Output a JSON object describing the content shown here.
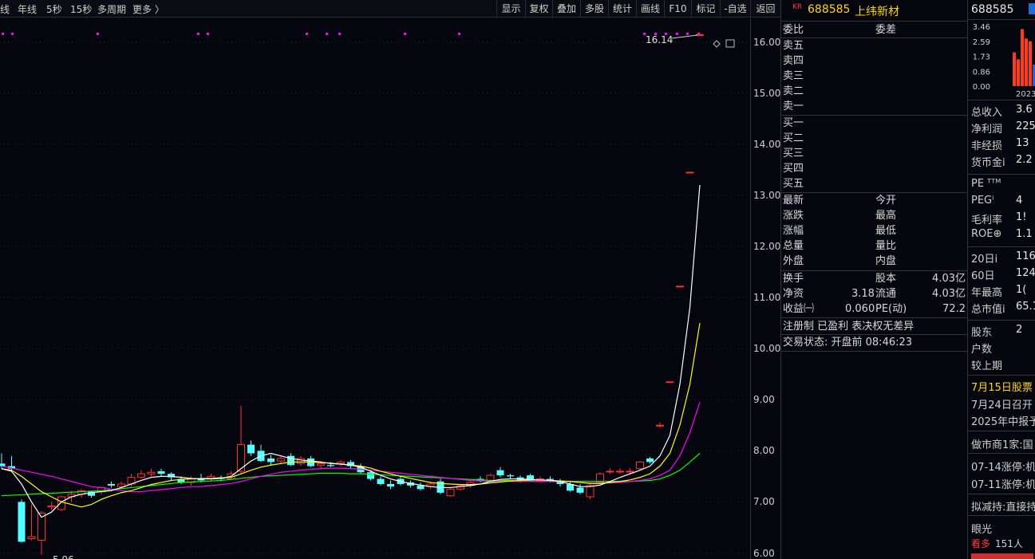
{
  "toolbar": {
    "periods": [
      "线",
      "年线",
      "5秒",
      "15秒",
      "多周期",
      "更多"
    ],
    "buttons": [
      "显示",
      "复权",
      "叠加",
      "多股",
      "统计",
      "画线",
      "F10",
      "标记",
      "-自选",
      "返回"
    ]
  },
  "chart": {
    "y_ticks": [
      "16.00",
      "15.00",
      "14.00",
      "13.00",
      "12.00",
      "11.00",
      "10.00",
      "9.00",
      "8.00",
      "7.00",
      "6.00"
    ],
    "high_label": "16.14",
    "low_label": "5.96",
    "colors": {
      "up": "#ff3030",
      "down": "#54ffff",
      "ma5": "#ffffff",
      "ma10": "#ffff00",
      "ma20": "#ff00ff",
      "ma60": "#00ff00",
      "marker": "#ff00ff"
    }
  },
  "chart_data": {
    "type": "candlestick",
    "ylim": [
      6.0,
      16.0
    ],
    "candles": [
      {
        "o": 7.75,
        "h": 7.95,
        "l": 7.65,
        "c": 7.7
      },
      {
        "o": 7.7,
        "h": 7.9,
        "l": 7.6,
        "c": 7.65
      },
      {
        "o": 7.0,
        "h": 7.05,
        "l": 6.2,
        "c": 6.22
      },
      {
        "o": 6.28,
        "h": 6.95,
        "l": 6.25,
        "c": 6.32
      },
      {
        "o": 6.25,
        "h": 6.82,
        "l": 5.96,
        "c": 6.78
      },
      {
        "o": 6.9,
        "h": 7.0,
        "l": 6.85,
        "c": 6.92
      },
      {
        "o": 6.85,
        "h": 7.12,
        "l": 6.82,
        "c": 7.1
      },
      {
        "o": 7.1,
        "h": 7.22,
        "l": 7.0,
        "c": 7.15
      },
      {
        "o": 7.15,
        "h": 7.25,
        "l": 7.08,
        "c": 7.22
      },
      {
        "o": 7.2,
        "h": 7.22,
        "l": 7.08,
        "c": 7.12
      },
      {
        "o": 7.2,
        "h": 7.3,
        "l": 7.15,
        "c": 7.28
      },
      {
        "o": 7.35,
        "h": 7.4,
        "l": 7.28,
        "c": 7.32
      },
      {
        "o": 7.3,
        "h": 7.4,
        "l": 7.25,
        "c": 7.35
      },
      {
        "o": 7.35,
        "h": 7.55,
        "l": 7.3,
        "c": 7.48
      },
      {
        "o": 7.48,
        "h": 7.62,
        "l": 7.45,
        "c": 7.55
      },
      {
        "o": 7.55,
        "h": 7.65,
        "l": 7.5,
        "c": 7.58
      },
      {
        "o": 7.6,
        "h": 7.65,
        "l": 7.5,
        "c": 7.55
      },
      {
        "o": 7.55,
        "h": 7.58,
        "l": 7.42,
        "c": 7.48
      },
      {
        "o": 7.45,
        "h": 7.5,
        "l": 7.35,
        "c": 7.38
      },
      {
        "o": 7.38,
        "h": 7.5,
        "l": 7.32,
        "c": 7.45
      },
      {
        "o": 7.45,
        "h": 7.55,
        "l": 7.38,
        "c": 7.42
      },
      {
        "o": 7.45,
        "h": 7.55,
        "l": 7.4,
        "c": 7.5
      },
      {
        "o": 7.48,
        "h": 7.52,
        "l": 7.4,
        "c": 7.45
      },
      {
        "o": 7.45,
        "h": 7.6,
        "l": 7.42,
        "c": 7.55
      },
      {
        "o": 7.6,
        "h": 8.88,
        "l": 7.55,
        "c": 8.12
      },
      {
        "o": 8.12,
        "h": 8.2,
        "l": 7.9,
        "c": 7.95
      },
      {
        "o": 8.0,
        "h": 8.12,
        "l": 7.78,
        "c": 7.8
      },
      {
        "o": 7.85,
        "h": 7.92,
        "l": 7.72,
        "c": 7.78
      },
      {
        "o": 7.8,
        "h": 7.9,
        "l": 7.75,
        "c": 7.85
      },
      {
        "o": 7.9,
        "h": 7.95,
        "l": 7.7,
        "c": 7.72
      },
      {
        "o": 7.75,
        "h": 7.9,
        "l": 7.7,
        "c": 7.85
      },
      {
        "o": 7.85,
        "h": 7.9,
        "l": 7.68,
        "c": 7.7
      },
      {
        "o": 7.72,
        "h": 7.8,
        "l": 7.65,
        "c": 7.75
      },
      {
        "o": 7.72,
        "h": 7.78,
        "l": 7.68,
        "c": 7.7
      },
      {
        "o": 7.75,
        "h": 7.82,
        "l": 7.7,
        "c": 7.78
      },
      {
        "o": 7.78,
        "h": 7.82,
        "l": 7.65,
        "c": 7.7
      },
      {
        "o": 7.7,
        "h": 7.75,
        "l": 7.55,
        "c": 7.58
      },
      {
        "o": 7.58,
        "h": 7.62,
        "l": 7.42,
        "c": 7.45
      },
      {
        "o": 7.45,
        "h": 7.5,
        "l": 7.32,
        "c": 7.35
      },
      {
        "o": 7.35,
        "h": 7.42,
        "l": 7.25,
        "c": 7.3
      },
      {
        "o": 7.45,
        "h": 7.5,
        "l": 7.32,
        "c": 7.35
      },
      {
        "o": 7.38,
        "h": 7.42,
        "l": 7.28,
        "c": 7.32
      },
      {
        "o": 7.32,
        "h": 7.38,
        "l": 7.22,
        "c": 7.25
      },
      {
        "o": 7.3,
        "h": 7.4,
        "l": 7.25,
        "c": 7.35
      },
      {
        "o": 7.4,
        "h": 7.45,
        "l": 7.15,
        "c": 7.18
      },
      {
        "o": 7.12,
        "h": 7.28,
        "l": 7.1,
        "c": 7.25
      },
      {
        "o": 7.25,
        "h": 7.35,
        "l": 7.22,
        "c": 7.32
      },
      {
        "o": 7.32,
        "h": 7.4,
        "l": 7.28,
        "c": 7.38
      },
      {
        "o": 7.45,
        "h": 7.5,
        "l": 7.38,
        "c": 7.42
      },
      {
        "o": 7.42,
        "h": 7.55,
        "l": 7.4,
        "c": 7.52
      },
      {
        "o": 7.62,
        "h": 7.68,
        "l": 7.48,
        "c": 7.52
      },
      {
        "o": 7.52,
        "h": 7.55,
        "l": 7.45,
        "c": 7.5
      },
      {
        "o": 7.48,
        "h": 7.52,
        "l": 7.38,
        "c": 7.42
      },
      {
        "o": 7.52,
        "h": 7.55,
        "l": 7.4,
        "c": 7.42
      },
      {
        "o": 7.42,
        "h": 7.5,
        "l": 7.38,
        "c": 7.45
      },
      {
        "o": 7.45,
        "h": 7.5,
        "l": 7.38,
        "c": 7.42
      },
      {
        "o": 7.4,
        "h": 7.45,
        "l": 7.3,
        "c": 7.35
      },
      {
        "o": 7.35,
        "h": 7.4,
        "l": 7.2,
        "c": 7.22
      },
      {
        "o": 7.28,
        "h": 7.35,
        "l": 7.15,
        "c": 7.18
      },
      {
        "o": 7.1,
        "h": 7.35,
        "l": 7.05,
        "c": 7.32
      },
      {
        "o": 7.38,
        "h": 7.58,
        "l": 7.35,
        "c": 7.55
      },
      {
        "o": 7.6,
        "h": 7.66,
        "l": 7.55,
        "c": 7.6
      },
      {
        "o": 7.6,
        "h": 7.66,
        "l": 7.55,
        "c": 7.6
      },
      {
        "o": 7.6,
        "h": 7.66,
        "l": 7.55,
        "c": 7.6
      },
      {
        "o": 7.65,
        "h": 7.8,
        "l": 7.62,
        "c": 7.78
      },
      {
        "o": 7.85,
        "h": 7.88,
        "l": 7.75,
        "c": 7.78
      },
      {
        "o": 8.5,
        "h": 8.55,
        "l": 8.45,
        "c": 8.5
      },
      {
        "o": 9.35,
        "h": 9.35,
        "l": 9.35,
        "c": 9.35
      },
      {
        "o": 11.22,
        "h": 11.22,
        "l": 11.22,
        "c": 11.22
      },
      {
        "o": 13.45,
        "h": 13.45,
        "l": 13.45,
        "c": 13.45
      },
      {
        "o": 16.14,
        "h": 16.14,
        "l": 16.14,
        "c": 16.14
      }
    ],
    "ma5": [
      7.65,
      7.6,
      7.35,
      7.0,
      6.7,
      6.8,
      7.0,
      7.1,
      7.15,
      7.18,
      7.2,
      7.22,
      7.28,
      7.35,
      7.42,
      7.48,
      7.5,
      7.5,
      7.48,
      7.46,
      7.45,
      7.45,
      7.46,
      7.5,
      7.65,
      7.8,
      7.9,
      7.95,
      7.9,
      7.85,
      7.82,
      7.8,
      7.78,
      7.75,
      7.74,
      7.72,
      7.68,
      7.6,
      7.52,
      7.45,
      7.4,
      7.36,
      7.33,
      7.3,
      7.28,
      7.28,
      7.3,
      7.32,
      7.35,
      7.4,
      7.44,
      7.45,
      7.45,
      7.44,
      7.43,
      7.42,
      7.4,
      7.35,
      7.3,
      7.3,
      7.33,
      7.4,
      7.48,
      7.55,
      7.62,
      7.7,
      7.9,
      8.3,
      9.3,
      10.8,
      13.2
    ],
    "ma10": [
      7.65,
      7.62,
      7.5,
      7.35,
      7.2,
      7.1,
      7.0,
      6.95,
      6.9,
      6.95,
      7.05,
      7.12,
      7.18,
      7.22,
      7.28,
      7.34,
      7.38,
      7.42,
      7.44,
      7.45,
      7.46,
      7.46,
      7.47,
      7.48,
      7.55,
      7.62,
      7.68,
      7.72,
      7.75,
      7.78,
      7.78,
      7.78,
      7.77,
      7.76,
      7.74,
      7.72,
      7.7,
      7.66,
      7.6,
      7.55,
      7.5,
      7.46,
      7.42,
      7.38,
      7.36,
      7.35,
      7.34,
      7.34,
      7.35,
      7.37,
      7.39,
      7.41,
      7.42,
      7.43,
      7.43,
      7.42,
      7.41,
      7.4,
      7.38,
      7.36,
      7.36,
      7.38,
      7.4,
      7.43,
      7.48,
      7.55,
      7.7,
      7.95,
      8.5,
      9.3,
      10.5
    ],
    "ma20": [
      7.7,
      7.66,
      7.62,
      7.58,
      7.54,
      7.5,
      7.45,
      7.4,
      7.35,
      7.3,
      7.28,
      7.25,
      7.22,
      7.2,
      7.2,
      7.22,
      7.24,
      7.26,
      7.28,
      7.3,
      7.3,
      7.32,
      7.34,
      7.36,
      7.4,
      7.45,
      7.5,
      7.54,
      7.58,
      7.6,
      7.62,
      7.64,
      7.65,
      7.66,
      7.66,
      7.65,
      7.64,
      7.62,
      7.6,
      7.58,
      7.56,
      7.54,
      7.52,
      7.5,
      7.48,
      7.46,
      7.44,
      7.42,
      7.41,
      7.4,
      7.4,
      7.4,
      7.4,
      7.4,
      7.4,
      7.4,
      7.4,
      7.4,
      7.38,
      7.37,
      7.37,
      7.37,
      7.38,
      7.4,
      7.42,
      7.45,
      7.52,
      7.62,
      7.9,
      8.35,
      8.95
    ],
    "ma60": [
      7.12,
      7.13,
      7.14,
      7.15,
      7.16,
      7.17,
      7.18,
      7.19,
      7.2,
      7.21,
      7.22,
      7.24,
      7.26,
      7.28,
      7.3,
      7.32,
      7.34,
      7.36,
      7.38,
      7.39,
      7.4,
      7.41,
      7.42,
      7.44,
      7.46,
      7.48,
      7.5,
      7.51,
      7.52,
      7.53,
      7.54,
      7.55,
      7.56,
      7.56,
      7.56,
      7.55,
      7.55,
      7.54,
      7.53,
      7.52,
      7.51,
      7.5,
      7.49,
      7.48,
      7.47,
      7.46,
      7.45,
      7.44,
      7.43,
      7.42,
      7.42,
      7.42,
      7.41,
      7.41,
      7.4,
      7.4,
      7.4,
      7.4,
      7.4,
      7.4,
      7.4,
      7.4,
      7.4,
      7.4,
      7.41,
      7.42,
      7.45,
      7.52,
      7.62,
      7.78,
      7.95
    ]
  },
  "order_panel": {
    "kr_tag": "KR",
    "code": "688585",
    "name": "上纬新材",
    "weibi": "委比",
    "weicha": "委差",
    "sells": [
      "卖五",
      "卖四",
      "卖三",
      "卖二",
      "卖一"
    ],
    "buys": [
      "买一",
      "买二",
      "买三",
      "买四",
      "买五"
    ],
    "quote_left": [
      "最新",
      "涨跌",
      "涨幅",
      "总量",
      "外盘"
    ],
    "quote_right": [
      "今开",
      "最高",
      "最低",
      "量比",
      "内盘"
    ],
    "huanshou": "换手",
    "guben_label": "股本",
    "guben_val": "4.03亿",
    "jingzi_label": "净资",
    "jingzi_val": "3.18",
    "liutong_label": "流通",
    "liutong_val": "4.03亿",
    "shouyi_label": "收益㈠",
    "shouyi_val": "0.060",
    "pe_label": "PE(动)",
    "pe_val": "72.2",
    "tags": "注册制 已盈利 表决权无差异",
    "status": "交易状态: 开盘前 08:46:23"
  },
  "fin_panel": {
    "code": "688585",
    "bar_ticks": [
      "3.46",
      "2.59",
      "1.73",
      "0.86",
      "0.00"
    ],
    "bar_values": [
      1.95,
      1.55,
      3.3,
      2.75,
      2.6,
      1.25
    ],
    "bar_year": "2023",
    "rows1": [
      {
        "label": "总收入",
        "value": "3.6"
      },
      {
        "label": "净利润",
        "value": "225"
      },
      {
        "label": "非经损",
        "value": "13"
      },
      {
        "label": "货币金i",
        "value": "2.2"
      }
    ],
    "rows2": [
      {
        "label": "PE ᵀᵀᴹ",
        "value": ""
      },
      {
        "label": "PEGⁱ",
        "value": "4"
      },
      {
        "label": "毛利率",
        "value": "1!"
      },
      {
        "label": "ROE⊕",
        "value": "1.1"
      }
    ],
    "rows3": [
      {
        "label": "20日i",
        "value": "116"
      },
      {
        "label": "60日",
        "value": "124"
      },
      {
        "label": "年最高",
        "value": "1("
      },
      {
        "label": "总市值i",
        "value": "65.1"
      }
    ],
    "rows4": [
      {
        "label": "股东",
        "value": "2"
      },
      {
        "label": "户数",
        "value": ""
      },
      {
        "label": "较上期",
        "value": ""
      }
    ],
    "news1": "7月15日股票",
    "news2": "7月24日召开",
    "news3": "2025年中报予",
    "market_maker": "做市商1家:国",
    "limit1": "07-14涨停:机",
    "limit2": "07-11涨停:机",
    "reduce": "拟减持:直接持",
    "eye": "眼光",
    "bull_label": "看多",
    "bull_count": "151人"
  }
}
